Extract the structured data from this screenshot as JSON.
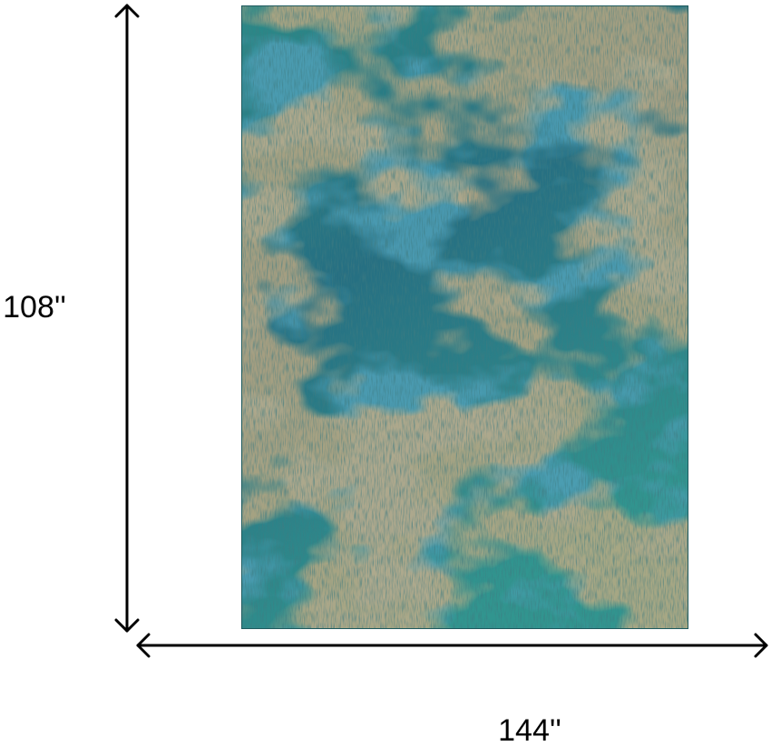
{
  "dimensions": {
    "height": "108''",
    "width": "144''"
  }
}
